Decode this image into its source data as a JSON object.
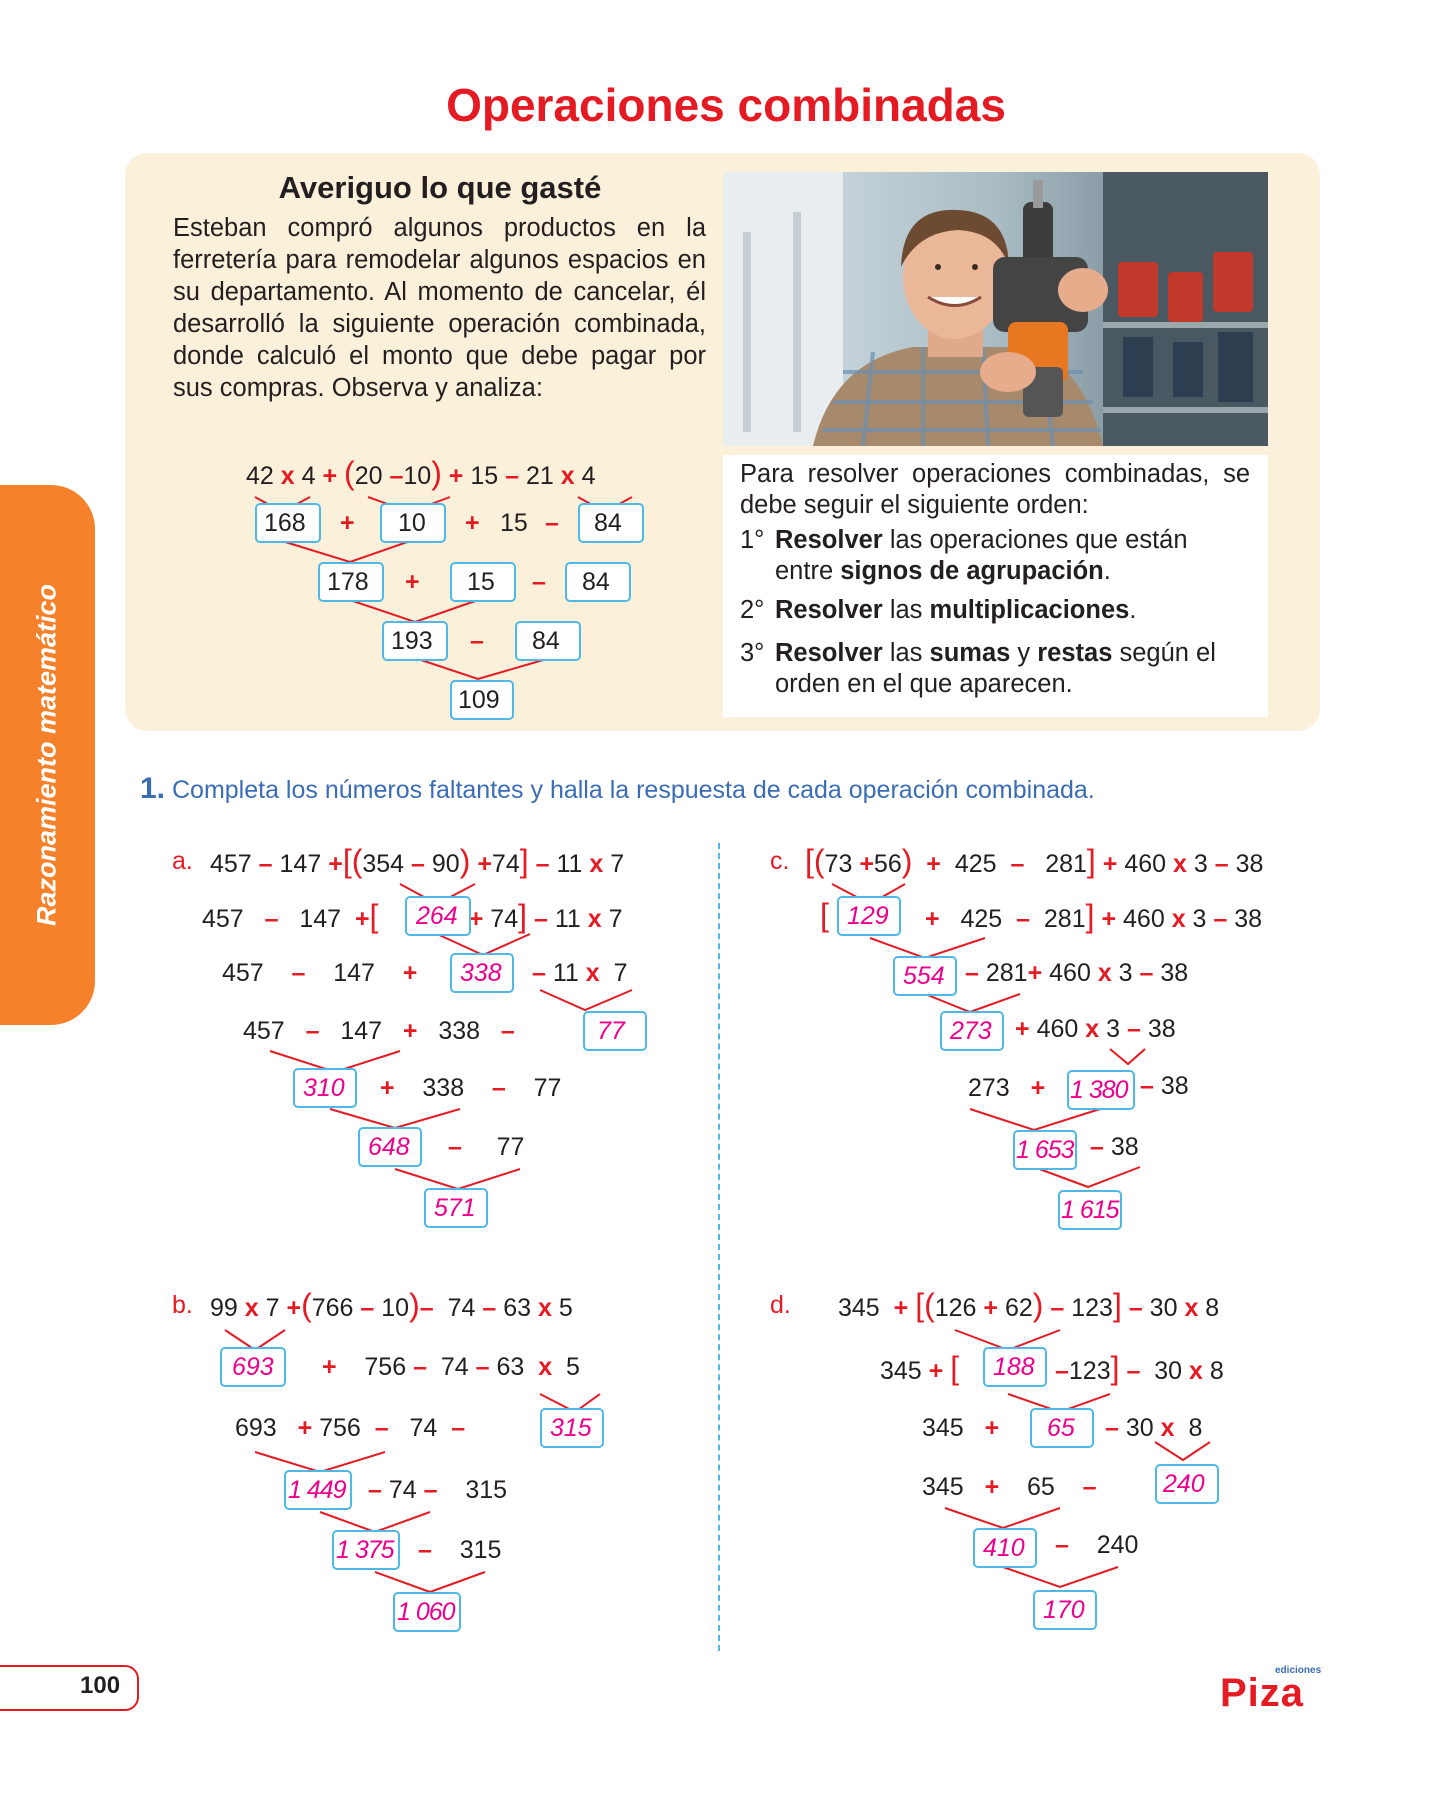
{
  "title": "Operaciones combinadas",
  "side_label": "Razonamiento matemático",
  "intro": {
    "heading": "Averiguo lo que gasté",
    "text": "Esteban compró algunos productos en la ferretería para remodelar algunos espacios en su departamento. Al momento de cancelar, él desarrolló la siguiente operación combinada, donde calculó el monto que debe pagar por sus compras. Observa y analiza:"
  },
  "example": {
    "expr": [
      "42",
      "x",
      "4",
      "+",
      "(",
      "20",
      "–",
      "10",
      ")",
      "+",
      "15",
      "–",
      "21",
      "x",
      "4"
    ],
    "boxes": [
      "168",
      "10",
      "84",
      "178",
      "15",
      "84",
      "193",
      "84",
      "109"
    ],
    "ops": [
      "+",
      "+",
      "15",
      "–",
      "+",
      "–",
      "–"
    ]
  },
  "rules": {
    "intro": "Para resolver operaciones combinadas, se debe seguir el siguiente orden:",
    "r1_num": "1°",
    "r1_a": "Resolver",
    "r1_b": " las operaciones que están entre ",
    "r1_c": "signos de agrupación",
    "r1_d": ".",
    "r2_num": "2°",
    "r2_a": "Resolver",
    "r2_b": " las ",
    "r2_c": "multiplicaciones",
    "r2_d": ".",
    "r3_num": "3°",
    "r3_a": "Resolver",
    "r3_b": " las ",
    "r3_c": "sumas",
    "r3_d": " y ",
    "r3_e": "restas",
    "r3_f": " según el orden en el que aparecen."
  },
  "exercise": {
    "number": "1.",
    "instruction": "Completa los números faltantes y halla la respuesta de cada operación combinada."
  },
  "a": {
    "label": "a.",
    "answers": [
      "264",
      "338",
      "77",
      "310",
      "648",
      "571"
    ],
    "nums": [
      "457",
      "147",
      "354",
      "90",
      "74",
      "11",
      "7",
      "457",
      "147",
      "74",
      "11",
      "7",
      "457",
      "147",
      "11",
      "7",
      "457",
      "147",
      "338",
      "338",
      "77",
      "77"
    ]
  },
  "b": {
    "label": "b.",
    "answers": [
      "693",
      "315",
      "1 449",
      "1 375",
      "1 060"
    ],
    "nums": [
      "99",
      "7",
      "766",
      "10",
      "74",
      "63",
      "5",
      "756",
      "74",
      "63",
      "5",
      "693",
      "756",
      "74",
      "74",
      "315",
      "315"
    ]
  },
  "c": {
    "label": "c.",
    "answers": [
      "129",
      "554",
      "273",
      "1 380",
      "1 653",
      "1 615"
    ],
    "nums": [
      "73",
      "56",
      "425",
      "281",
      "460",
      "3",
      "38",
      "425",
      "281",
      "460",
      "3",
      "38",
      "281",
      "460",
      "3",
      "38",
      "460",
      "3",
      "38",
      "273",
      "38",
      "38"
    ]
  },
  "d": {
    "label": "d.",
    "answers": [
      "188",
      "65",
      "240",
      "410",
      "170"
    ],
    "nums": [
      "345",
      "126",
      "62",
      "123",
      "30",
      "8",
      "345",
      "123",
      "30",
      "8",
      "345",
      "30",
      "8",
      "345",
      "65",
      "240"
    ]
  },
  "page_number": "100",
  "logo": {
    "small": "ediciones",
    "main": "Piza"
  }
}
